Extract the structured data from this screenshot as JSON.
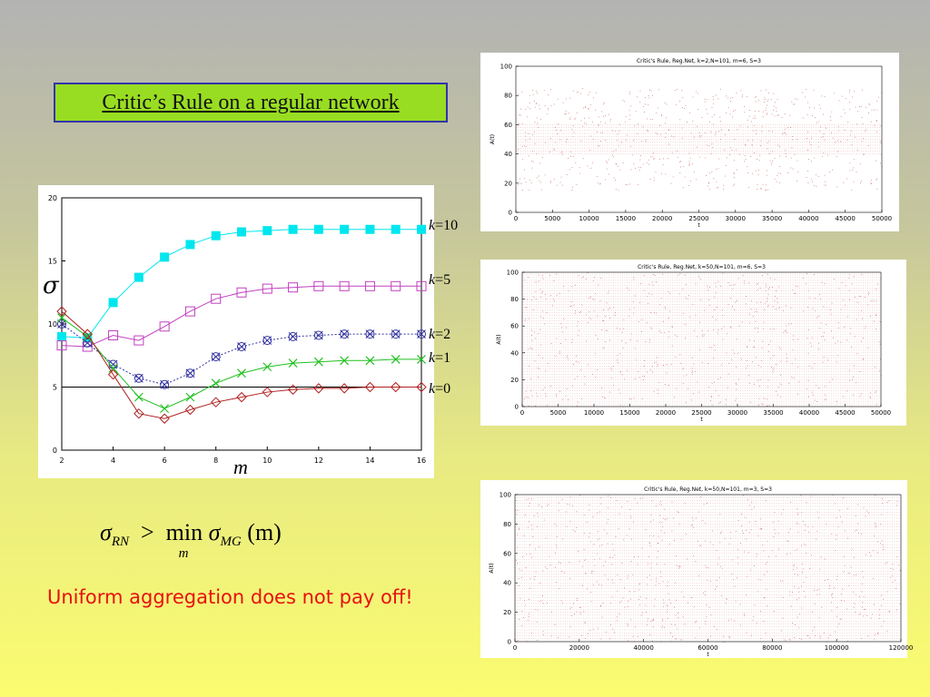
{
  "slide": {
    "title": "Critic’s Rule on a regular network",
    "conclusion": "Uniform aggregation does not pay off!",
    "formula": {
      "lhs_symbol": "σ",
      "lhs_sub": "RN",
      "op": ">",
      "min": "min",
      "min_sub": "m",
      "rhs_symbol": "σ",
      "rhs_sub": "MG",
      "arg": "(m)"
    },
    "colors": {
      "title_bg": "#99dd22",
      "conclusion": "#e81010",
      "scatter": "#c86464"
    }
  },
  "chart_data": [
    {
      "type": "line",
      "ylabel": "σ",
      "xlabel": "m",
      "xlim": [
        2,
        16
      ],
      "ylim": [
        0,
        20
      ],
      "x_ticks": [
        2,
        4,
        6,
        8,
        10,
        12,
        14,
        16
      ],
      "y_ticks": [
        0,
        5,
        10,
        15,
        20
      ],
      "reference_line": 5,
      "x": [
        2,
        3,
        4,
        5,
        6,
        7,
        8,
        9,
        10,
        11,
        12,
        13,
        14,
        15,
        16
      ],
      "series": [
        {
          "name": "k = 10",
          "label_k": "k",
          "label_val": "=10",
          "color": "#00e6ee",
          "marker": "filled-square",
          "values": [
            9.0,
            8.9,
            11.7,
            13.7,
            15.3,
            16.3,
            17.0,
            17.3,
            17.4,
            17.5,
            17.5,
            17.5,
            17.5,
            17.5,
            17.5
          ]
        },
        {
          "name": "k = 5",
          "label_k": "k",
          "label_val": "=5",
          "color": "#c040c0",
          "marker": "square",
          "values": [
            8.3,
            8.2,
            9.1,
            8.7,
            9.8,
            11.0,
            12.0,
            12.5,
            12.8,
            12.9,
            13.0,
            13.0,
            13.0,
            13.0,
            13.0
          ]
        },
        {
          "name": "k = 2",
          "label_k": "k",
          "label_val": "=2",
          "color": "#3030a0",
          "marker": "x-circle",
          "values": [
            10.0,
            8.5,
            6.8,
            5.7,
            5.2,
            6.1,
            7.4,
            8.2,
            8.7,
            9.0,
            9.1,
            9.2,
            9.2,
            9.2,
            9.2
          ]
        },
        {
          "name": "k = 1",
          "label_k": "k",
          "label_val": "=1",
          "color": "#20c020",
          "marker": "x",
          "values": [
            10.5,
            9.0,
            6.5,
            4.2,
            3.3,
            4.2,
            5.3,
            6.1,
            6.6,
            6.9,
            7.0,
            7.1,
            7.1,
            7.2,
            7.2
          ]
        },
        {
          "name": "k = 0",
          "label_k": "k",
          "label_val": "=0",
          "color": "#b02020",
          "marker": "diamond",
          "values": [
            11.0,
            9.2,
            6.0,
            2.9,
            2.5,
            3.2,
            3.8,
            4.2,
            4.6,
            4.8,
            4.9,
            4.9,
            5.0,
            5.0,
            5.0
          ]
        }
      ]
    },
    {
      "type": "scatter",
      "title": "Critic's Rule, Reg.Net, k=2,N=101, m=6, S=3",
      "xlabel": "t",
      "ylabel": "A(t)",
      "xlim": [
        0,
        50000
      ],
      "ylim": [
        0,
        100
      ],
      "x_ticks": [
        0,
        5000,
        10000,
        15000,
        20000,
        25000,
        30000,
        35000,
        40000,
        45000,
        50000
      ],
      "y_ticks": [
        0,
        20,
        40,
        60,
        80,
        100
      ],
      "band": [
        40,
        60
      ],
      "spread": [
        15,
        85
      ],
      "cols": 180
    },
    {
      "type": "scatter",
      "title": "Critic's Rule, Reg.Net, k=50,N=101, m=6, S=3",
      "xlabel": "t",
      "ylabel": "A(t)",
      "xlim": [
        0,
        50000
      ],
      "ylim": [
        0,
        100
      ],
      "x_ticks": [
        0,
        5000,
        10000,
        15000,
        20000,
        25000,
        30000,
        35000,
        40000,
        45000,
        50000
      ],
      "y_ticks": [
        0,
        20,
        40,
        60,
        80,
        100
      ],
      "band": [
        0,
        100
      ],
      "spread": [
        0,
        100
      ],
      "cols": 180
    },
    {
      "type": "scatter",
      "title": "Critic's Rule, Reg.Net, k=50,N=101, m=3, S=3",
      "xlabel": "t",
      "ylabel": "A(t)",
      "xlim": [
        0,
        120000
      ],
      "ylim": [
        0,
        100
      ],
      "x_ticks": [
        0,
        20000,
        40000,
        60000,
        80000,
        100000,
        120000
      ],
      "y_ticks": [
        0,
        20,
        40,
        60,
        80,
        100
      ],
      "band": [
        0,
        100
      ],
      "spread": [
        0,
        100
      ],
      "cols": 200
    }
  ]
}
